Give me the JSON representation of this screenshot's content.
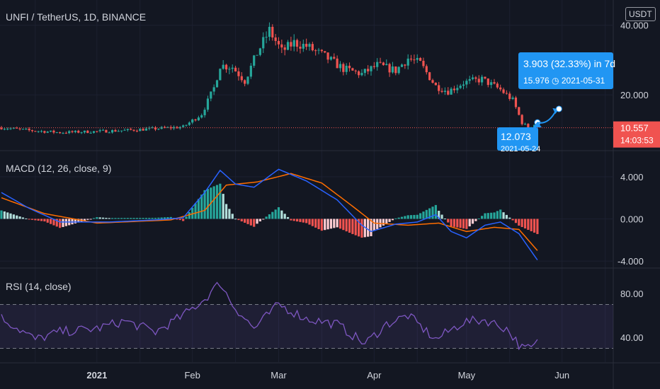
{
  "header": {
    "title": "UNFI / TetherUS, 1D, BINANCE",
    "currency": "USDT"
  },
  "panes": {
    "price": {
      "ticks": [
        "40.000",
        "20.000"
      ]
    },
    "macd": {
      "title": "MACD (12, 26, close, 9)",
      "ticks": [
        "4.000",
        "0.000",
        "-4.000"
      ]
    },
    "rsi": {
      "title": "RSI (14, close)",
      "ticks": [
        "80.00",
        "40.00"
      ]
    }
  },
  "price_label": {
    "value": "10.557",
    "countdown": "14:03:53"
  },
  "projection": {
    "change": "3.903 (32.33%) in 7d",
    "target": "15.976",
    "target_date": "2021-05-31",
    "base": "12.073",
    "base_date": "2021-05-24"
  },
  "x_axis": {
    "labels": [
      "2021",
      "Feb",
      "Mar",
      "Apr",
      "May",
      "Jun"
    ]
  },
  "colors": {
    "background": "#131722",
    "up": "#26a69a",
    "down": "#ef5350",
    "macd_line": "#2962ff",
    "signal_line": "#ff6d00",
    "rsi_line": "#7e57c2",
    "label_bg": "#2196f3",
    "last_price_bg": "#f05350"
  },
  "chart_data": [
    {
      "type": "candlestick",
      "title": "UNFI / TetherUS, 1D, BINANCE",
      "ylabel": "USDT",
      "ytick_labels": [
        "40.000",
        "20.000"
      ],
      "xtick_labels": [
        "2021",
        "Feb",
        "Mar",
        "Apr",
        "May",
        "Jun"
      ],
      "anchors": [
        {
          "date": "2020-12-01",
          "close": 10.6
        },
        {
          "date": "2020-12-10",
          "close": 9.8
        },
        {
          "date": "2020-12-20",
          "close": 9.2
        },
        {
          "date": "2021-01-01",
          "close": 9.5
        },
        {
          "date": "2021-01-10",
          "close": 9.8
        },
        {
          "date": "2021-01-20",
          "close": 10.3
        },
        {
          "date": "2021-01-29",
          "close": 10.8
        },
        {
          "date": "2021-02-04",
          "close": 14.5
        },
        {
          "date": "2021-02-08",
          "close": 22.0
        },
        {
          "date": "2021-02-10",
          "close": 28.5
        },
        {
          "date": "2021-02-14",
          "close": 28.0
        },
        {
          "date": "2021-02-18",
          "close": 24.0
        },
        {
          "date": "2021-02-22",
          "close": 32.0
        },
        {
          "date": "2021-02-26",
          "close": 38.5
        },
        {
          "date": "2021-03-02",
          "close": 32.5
        },
        {
          "date": "2021-03-06",
          "close": 35.0
        },
        {
          "date": "2021-03-10",
          "close": 34.0
        },
        {
          "date": "2021-03-16",
          "close": 31.0
        },
        {
          "date": "2021-03-22",
          "close": 27.5
        },
        {
          "date": "2021-03-28",
          "close": 26.0
        },
        {
          "date": "2021-04-02",
          "close": 28.5
        },
        {
          "date": "2021-04-08",
          "close": 27.0
        },
        {
          "date": "2021-04-12",
          "close": 30.5
        },
        {
          "date": "2021-04-16",
          "close": 29.0
        },
        {
          "date": "2021-04-21",
          "close": 22.5
        },
        {
          "date": "2021-04-25",
          "close": 21.0
        },
        {
          "date": "2021-04-30",
          "close": 23.5
        },
        {
          "date": "2021-05-06",
          "close": 24.5
        },
        {
          "date": "2021-05-12",
          "close": 21.5
        },
        {
          "date": "2021-05-16",
          "close": 18.5
        },
        {
          "date": "2021-05-19",
          "close": 12.0
        },
        {
          "date": "2021-05-21",
          "close": 10.6
        },
        {
          "date": "2021-05-24",
          "close": 12.0
        }
      ],
      "last_price": 10.557,
      "ylim": [
        5,
        44
      ]
    },
    {
      "type": "macd",
      "title": "MACD (12, 26, close, 9)",
      "ytick_labels": [
        "4.000",
        "0.000",
        "-4.000"
      ],
      "macd_anchors": [
        {
          "date": "2020-12-01",
          "value": 2.5
        },
        {
          "date": "2020-12-10",
          "value": 1.0
        },
        {
          "date": "2020-12-20",
          "value": -0.3
        },
        {
          "date": "2021-01-05",
          "value": -0.3
        },
        {
          "date": "2021-01-20",
          "value": -0.1
        },
        {
          "date": "2021-01-29",
          "value": 0.1
        },
        {
          "date": "2021-02-05",
          "value": 2.5
        },
        {
          "date": "2021-02-10",
          "value": 4.6
        },
        {
          "date": "2021-02-15",
          "value": 3.3
        },
        {
          "date": "2021-02-21",
          "value": 3.0
        },
        {
          "date": "2021-03-01",
          "value": 4.7
        },
        {
          "date": "2021-03-10",
          "value": 3.6
        },
        {
          "date": "2021-03-20",
          "value": 1.8
        },
        {
          "date": "2021-03-28",
          "value": -0.6
        },
        {
          "date": "2021-03-31",
          "value": -1.2
        },
        {
          "date": "2021-04-08",
          "value": -0.5
        },
        {
          "date": "2021-04-15",
          "value": -0.3
        },
        {
          "date": "2021-04-21",
          "value": 0.4
        },
        {
          "date": "2021-04-26",
          "value": -1.2
        },
        {
          "date": "2021-05-01",
          "value": -1.8
        },
        {
          "date": "2021-05-07",
          "value": -0.6
        },
        {
          "date": "2021-05-12",
          "value": -0.3
        },
        {
          "date": "2021-05-18",
          "value": -1.4
        },
        {
          "date": "2021-05-24",
          "value": -3.9
        }
      ],
      "signal_anchors": [
        {
          "date": "2020-12-01",
          "value": 2.0
        },
        {
          "date": "2020-12-15",
          "value": 0.5
        },
        {
          "date": "2021-01-01",
          "value": -0.4
        },
        {
          "date": "2021-01-25",
          "value": -0.1
        },
        {
          "date": "2021-02-05",
          "value": 0.8
        },
        {
          "date": "2021-02-12",
          "value": 3.2
        },
        {
          "date": "2021-02-22",
          "value": 3.5
        },
        {
          "date": "2021-03-05",
          "value": 4.3
        },
        {
          "date": "2021-03-15",
          "value": 3.4
        },
        {
          "date": "2021-03-25",
          "value": 1.2
        },
        {
          "date": "2021-04-01",
          "value": -0.4
        },
        {
          "date": "2021-04-12",
          "value": -0.6
        },
        {
          "date": "2021-04-22",
          "value": -0.4
        },
        {
          "date": "2021-05-01",
          "value": -1.2
        },
        {
          "date": "2021-05-10",
          "value": -0.8
        },
        {
          "date": "2021-05-18",
          "value": -1.0
        },
        {
          "date": "2021-05-24",
          "value": -3.0
        }
      ],
      "ylim": [
        -5,
        6
      ]
    },
    {
      "type": "rsi",
      "title": "RSI (14, close)",
      "ytick_labels": [
        "80.00",
        "40.00"
      ],
      "band": [
        30,
        70
      ],
      "anchors": [
        {
          "date": "2020-12-01",
          "value": 58
        },
        {
          "date": "2020-12-12",
          "value": 38
        },
        {
          "date": "2020-12-20",
          "value": 45
        },
        {
          "date": "2021-01-01",
          "value": 48
        },
        {
          "date": "2021-01-10",
          "value": 55
        },
        {
          "date": "2021-01-20",
          "value": 45
        },
        {
          "date": "2021-01-29",
          "value": 60
        },
        {
          "date": "2021-02-05",
          "value": 75
        },
        {
          "date": "2021-02-10",
          "value": 90
        },
        {
          "date": "2021-02-14",
          "value": 70
        },
        {
          "date": "2021-02-21",
          "value": 48
        },
        {
          "date": "2021-03-01",
          "value": 70
        },
        {
          "date": "2021-03-10",
          "value": 57
        },
        {
          "date": "2021-03-20",
          "value": 52
        },
        {
          "date": "2021-03-29",
          "value": 34
        },
        {
          "date": "2021-04-05",
          "value": 52
        },
        {
          "date": "2021-04-12",
          "value": 60
        },
        {
          "date": "2021-04-21",
          "value": 38
        },
        {
          "date": "2021-04-30",
          "value": 54
        },
        {
          "date": "2021-05-07",
          "value": 56
        },
        {
          "date": "2021-05-14",
          "value": 48
        },
        {
          "date": "2021-05-19",
          "value": 30
        },
        {
          "date": "2021-05-22",
          "value": 30
        },
        {
          "date": "2021-05-24",
          "value": 35
        }
      ],
      "ylim": [
        20,
        100
      ]
    }
  ]
}
